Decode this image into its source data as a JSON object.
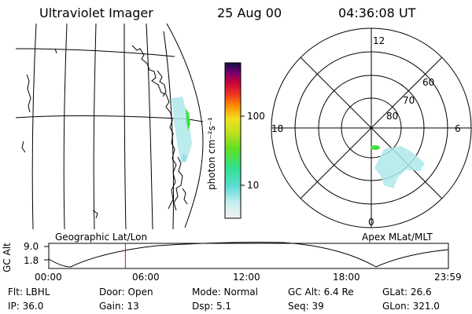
{
  "header": {
    "title": "Ultraviolet Imager",
    "date": "25 Aug 00",
    "time": "04:36:08 UT"
  },
  "colorbar": {
    "unit_label": "photon cm⁻²s⁻¹",
    "tick_100": "100",
    "tick_10": "10"
  },
  "left_panel": {
    "caption": "Geographic Lat/Lon"
  },
  "right_panel": {
    "caption": "Apex MLat/MLT",
    "mlt_labels": {
      "top": "12",
      "left": "18",
      "right": "6",
      "bottom": "0"
    },
    "lat_labels": {
      "r60": "60",
      "r70": "70",
      "r80": "80"
    }
  },
  "altitude_plot": {
    "ylabel": "GC Alt",
    "y_ticks": {
      "top": "9.0",
      "bottom": "1.8"
    },
    "x_ticks": [
      "00:00",
      "06:00",
      "12:00",
      "18:00",
      "23:59"
    ],
    "marker_time_hours": 4.6
  },
  "status": {
    "filter": "Flt: LBHL",
    "door": "Door: Open",
    "mode": "Mode: Normal",
    "gc_alt": "GC Alt: 6.4 Re",
    "glat": "GLat:  26.6",
    "ip": "IP: 36.0",
    "gain": "Gain: 13",
    "dsp": "Dsp:     5.1",
    "seq": "Seq: 39",
    "glon": "GLon: 321.0"
  },
  "colors": {
    "marker": "#ff0000",
    "aurora_cyan": "#aee8ea",
    "aurora_green": "#40e040"
  }
}
